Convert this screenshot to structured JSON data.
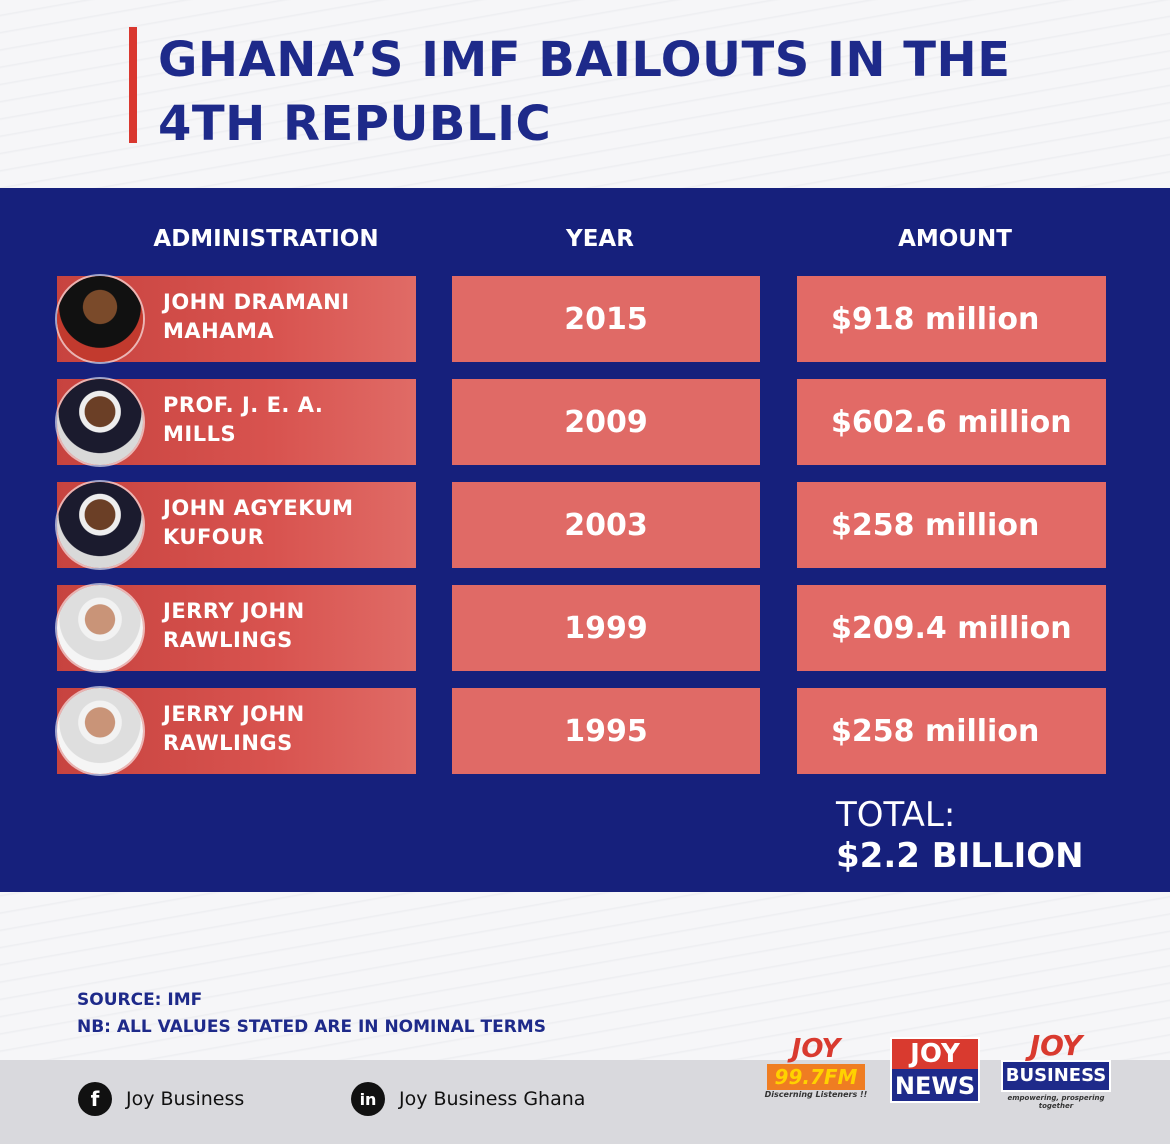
{
  "title": "GHANA’S IMF BAILOUTS IN THE 4TH REPUBLIC",
  "headers": {
    "administration": "ADMINISTRATION",
    "year": "YEAR",
    "amount": "AMOUNT"
  },
  "rows": [
    {
      "name_line1": "JOHN DRAMANI",
      "name_line2": "MAHAMA",
      "year": "2015",
      "amount": "$918 million"
    },
    {
      "name_line1": "PROF. J. E. A.",
      "name_line2": "MILLS",
      "year": "2009",
      "amount": "$602.6 million"
    },
    {
      "name_line1": "JOHN AGYEKUM",
      "name_line2": "KUFOUR",
      "year": "2003",
      "amount": "$258 million"
    },
    {
      "name_line1": "JERRY JOHN",
      "name_line2": "RAWLINGS",
      "year": "1999",
      "amount": "$209.4 million"
    },
    {
      "name_line1": "JERRY JOHN",
      "name_line2": "RAWLINGS",
      "year": "1995",
      "amount": "$258 million"
    }
  ],
  "total": {
    "label": "TOTAL:",
    "value": "$2.2 BILLION"
  },
  "notes": {
    "source": "SOURCE: IMF",
    "nb": "NB: ALL VALUES STATED ARE IN NOMINAL TERMS"
  },
  "footer": {
    "facebook_label": "Joy Business",
    "linkedin_label": "Joy Business Ghana",
    "facebook_icon": "f",
    "linkedin_icon": "in"
  },
  "logos": {
    "fm_line1": "JOY",
    "fm_line2": "99.7FM",
    "fm_tagline": "Discerning Listeners !!",
    "news_line1": "JOY",
    "news_line2": "NEWS",
    "business_line1": "JOY",
    "business_line2": "BUSINESS",
    "business_tagline": "empowering, prospering together"
  },
  "colors": {
    "navy": "#16207c",
    "title_blue": "#1e2a8a",
    "accent_red": "#d9372f",
    "cell_red": "#e06a66"
  }
}
